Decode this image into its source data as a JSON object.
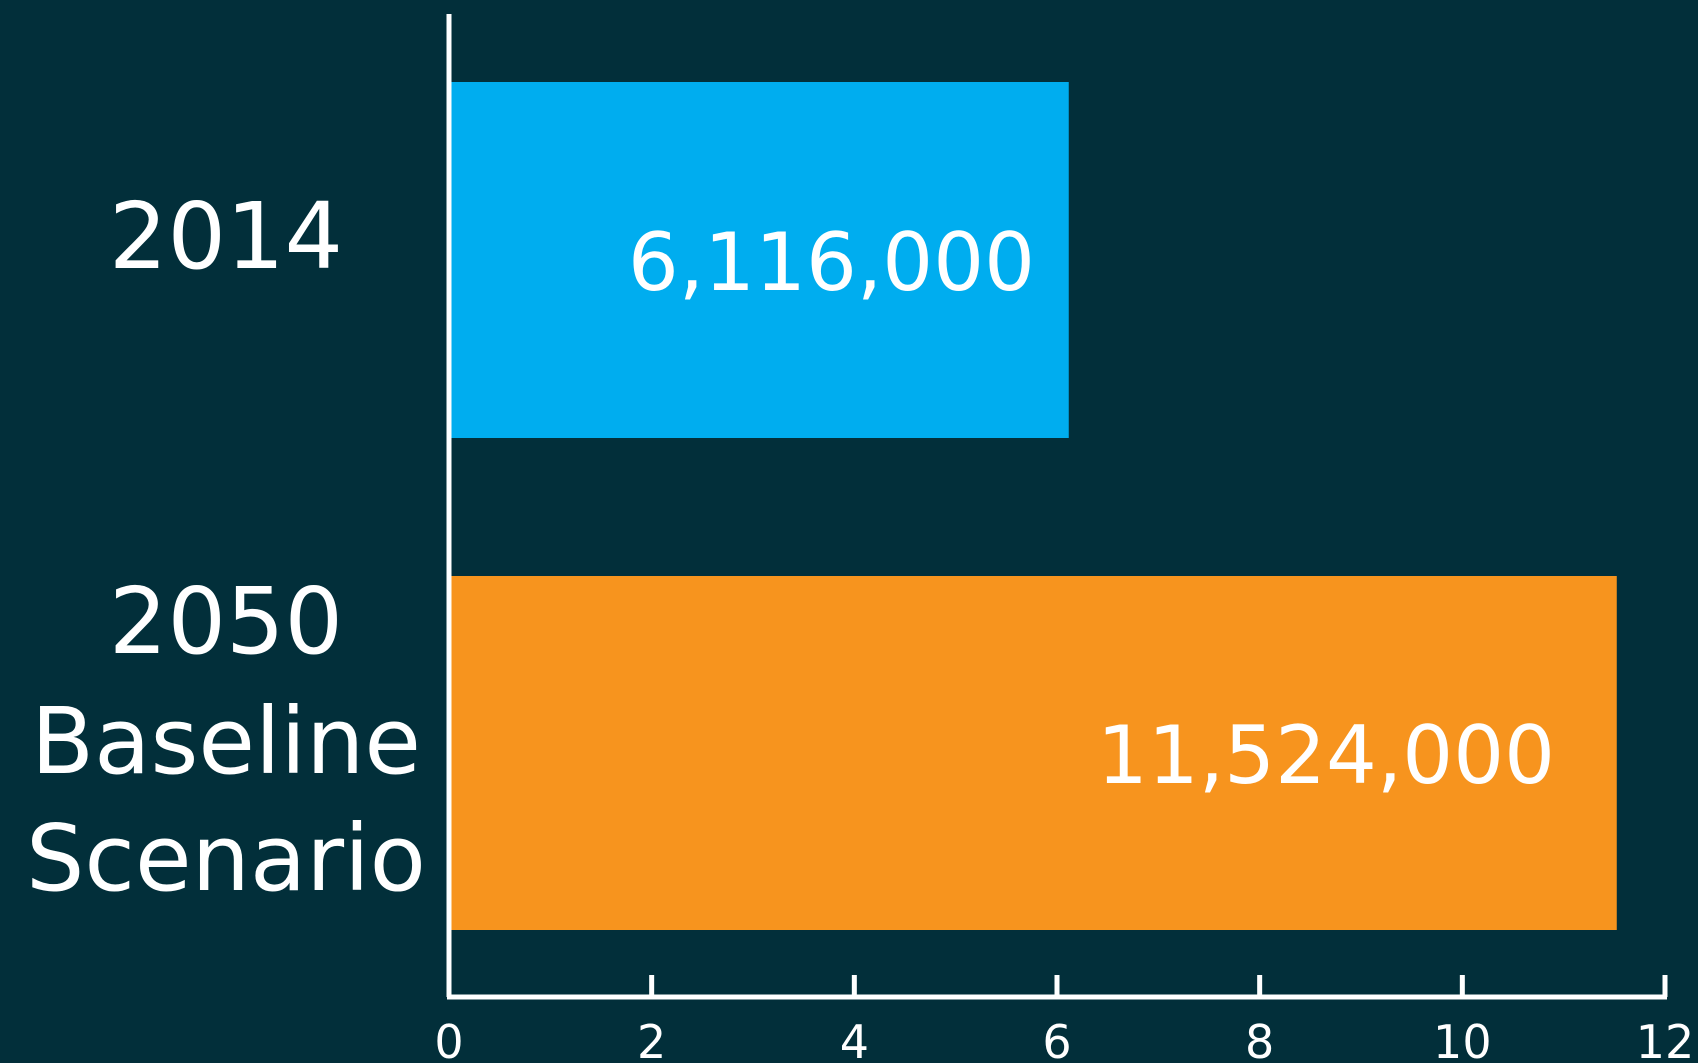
{
  "chart_data": {
    "type": "bar",
    "orientation": "horizontal",
    "categories": [
      [
        "2014"
      ],
      [
        "2050",
        "Baseline",
        "Scenario"
      ]
    ],
    "values": [
      6.116,
      11.524
    ],
    "data_labels": [
      "6,116,000",
      "11,524,000"
    ],
    "xlim": [
      0,
      12
    ],
    "x_ticks": [
      0,
      2,
      4,
      6,
      8,
      10,
      12
    ],
    "x_tick_labels": [
      "0",
      "2",
      "4",
      "6",
      "8",
      "10",
      "12"
    ],
    "grid": false,
    "legend": "none",
    "colors": {
      "background": "#022f3a",
      "axis": "#ffffff",
      "text": "#ffffff",
      "bars": [
        "#00adef",
        "#f7941e"
      ]
    }
  }
}
